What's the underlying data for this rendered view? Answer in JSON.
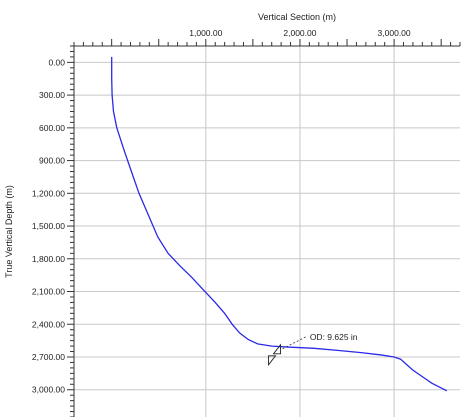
{
  "chart_data": {
    "type": "line",
    "title": "",
    "xlabel": "Vertical Section (m)",
    "ylabel": "True Vertical Depth (m)",
    "xlim": [
      -400,
      3700
    ],
    "ylim": [
      -150,
      3250
    ],
    "y_inverted": true,
    "x_axis_position": "top",
    "grid": true,
    "x_ticks": [
      {
        "value": 1000,
        "label": "1,000.00"
      },
      {
        "value": 2000,
        "label": "2,000.00"
      },
      {
        "value": 3000,
        "label": "3,000.00"
      }
    ],
    "y_ticks": [
      {
        "value": 0,
        "label": "0.00"
      },
      {
        "value": 300,
        "label": "300.00"
      },
      {
        "value": 600,
        "label": "600.00"
      },
      {
        "value": 900,
        "label": "900.00"
      },
      {
        "value": 1200,
        "label": "1,200.00"
      },
      {
        "value": 1500,
        "label": "1,500.00"
      },
      {
        "value": 1800,
        "label": "1,800.00"
      },
      {
        "value": 2100,
        "label": "2,100.00"
      },
      {
        "value": 2400,
        "label": "2,400.00"
      },
      {
        "value": 2700,
        "label": "2,700.00"
      },
      {
        "value": 3000,
        "label": "3,000.00"
      }
    ],
    "series": [
      {
        "color": "#2a2ae8",
        "x": [
          0,
          0,
          5,
          20,
          55,
          130,
          210,
          290,
          390,
          490,
          600,
          720,
          850,
          980,
          1100,
          1200,
          1280,
          1360,
          1450,
          1550,
          1700,
          1900,
          2150,
          2400,
          2650,
          2850,
          3000,
          3070,
          3120,
          3200,
          3300,
          3400,
          3560
        ],
        "y": [
          -50,
          150,
          300,
          450,
          600,
          800,
          1000,
          1200,
          1400,
          1600,
          1750,
          1860,
          1970,
          2090,
          2200,
          2300,
          2400,
          2480,
          2540,
          2580,
          2600,
          2610,
          2620,
          2640,
          2660,
          2680,
          2700,
          2720,
          2760,
          2820,
          2880,
          2940,
          3010
        ]
      }
    ],
    "annotation": {
      "label": "OD: 9.625 in",
      "x": 1680,
      "y": 2570,
      "marker_x": 1730,
      "marker_y": 2680,
      "icon": "casing-shoe-icon"
    }
  }
}
